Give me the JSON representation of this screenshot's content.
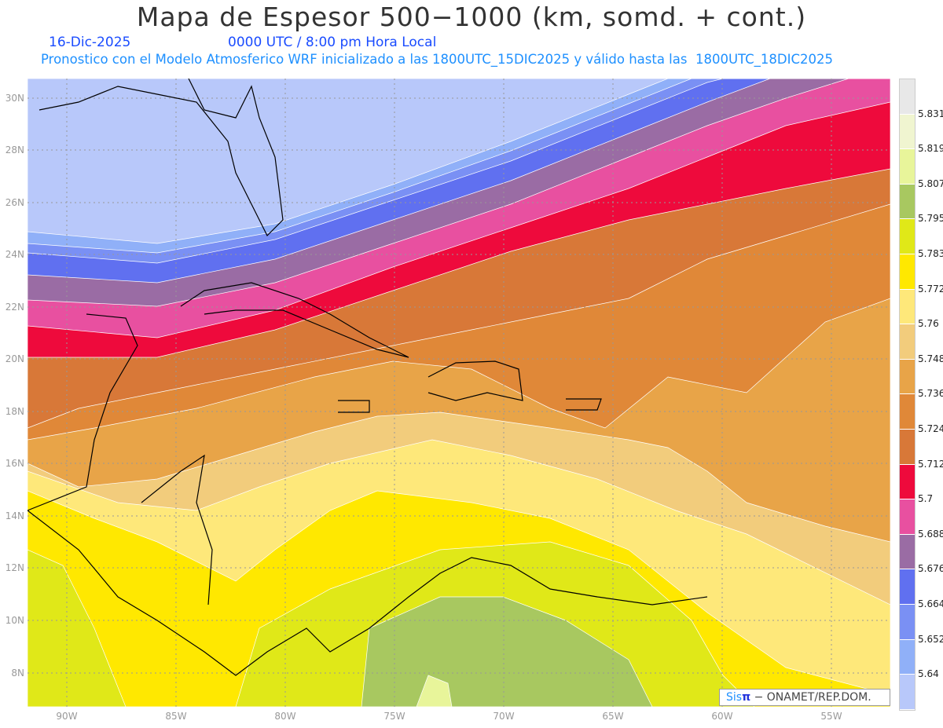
{
  "header": {
    "title": "Mapa de Espesor 500−1000 (km, somd. + cont.)",
    "date": "16-Dic-2025",
    "time": "0000 UTC / 8:00 pm Hora Local",
    "description": "Pronostico con el Modelo Atmosferico WRF inicializado a las 1800UTC_15DIC2025 y válido hasta las  1800UTC_18DIC2025"
  },
  "axes": {
    "lat_labels": [
      "30N",
      "28N",
      "26N",
      "24N",
      "22N",
      "20N",
      "18N",
      "16N",
      "14N",
      "12N",
      "10N",
      "8N"
    ],
    "lon_labels": [
      "90W",
      "85W",
      "80W",
      "75W",
      "70W",
      "65W",
      "60W",
      "55W"
    ]
  },
  "colorbar": {
    "labels": [
      "5.831",
      "5.819",
      "5.807",
      "5.795",
      "5.783",
      "5.772",
      "5.76",
      "5.748",
      "5.736",
      "5.724",
      "5.712",
      "5.7",
      "5.688",
      "5.676",
      "5.664",
      "5.652",
      "5.64"
    ],
    "colors": [
      "#e8e8e8",
      "#f0f5d0",
      "#e8f59a",
      "#a8c860",
      "#e0e818",
      "#ffe800",
      "#fee87a",
      "#f2cc7c",
      "#e8a448",
      "#e08838",
      "#d87838",
      "#ee0a3c",
      "#e850a0",
      "#9a6ca4",
      "#6070f0",
      "#7a90f4",
      "#90b0f8",
      "#b8c8fa"
    ]
  },
  "credit": {
    "brand": "Sis",
    "pi": "π",
    "text": " − ONAMET/REP.DOM."
  }
}
